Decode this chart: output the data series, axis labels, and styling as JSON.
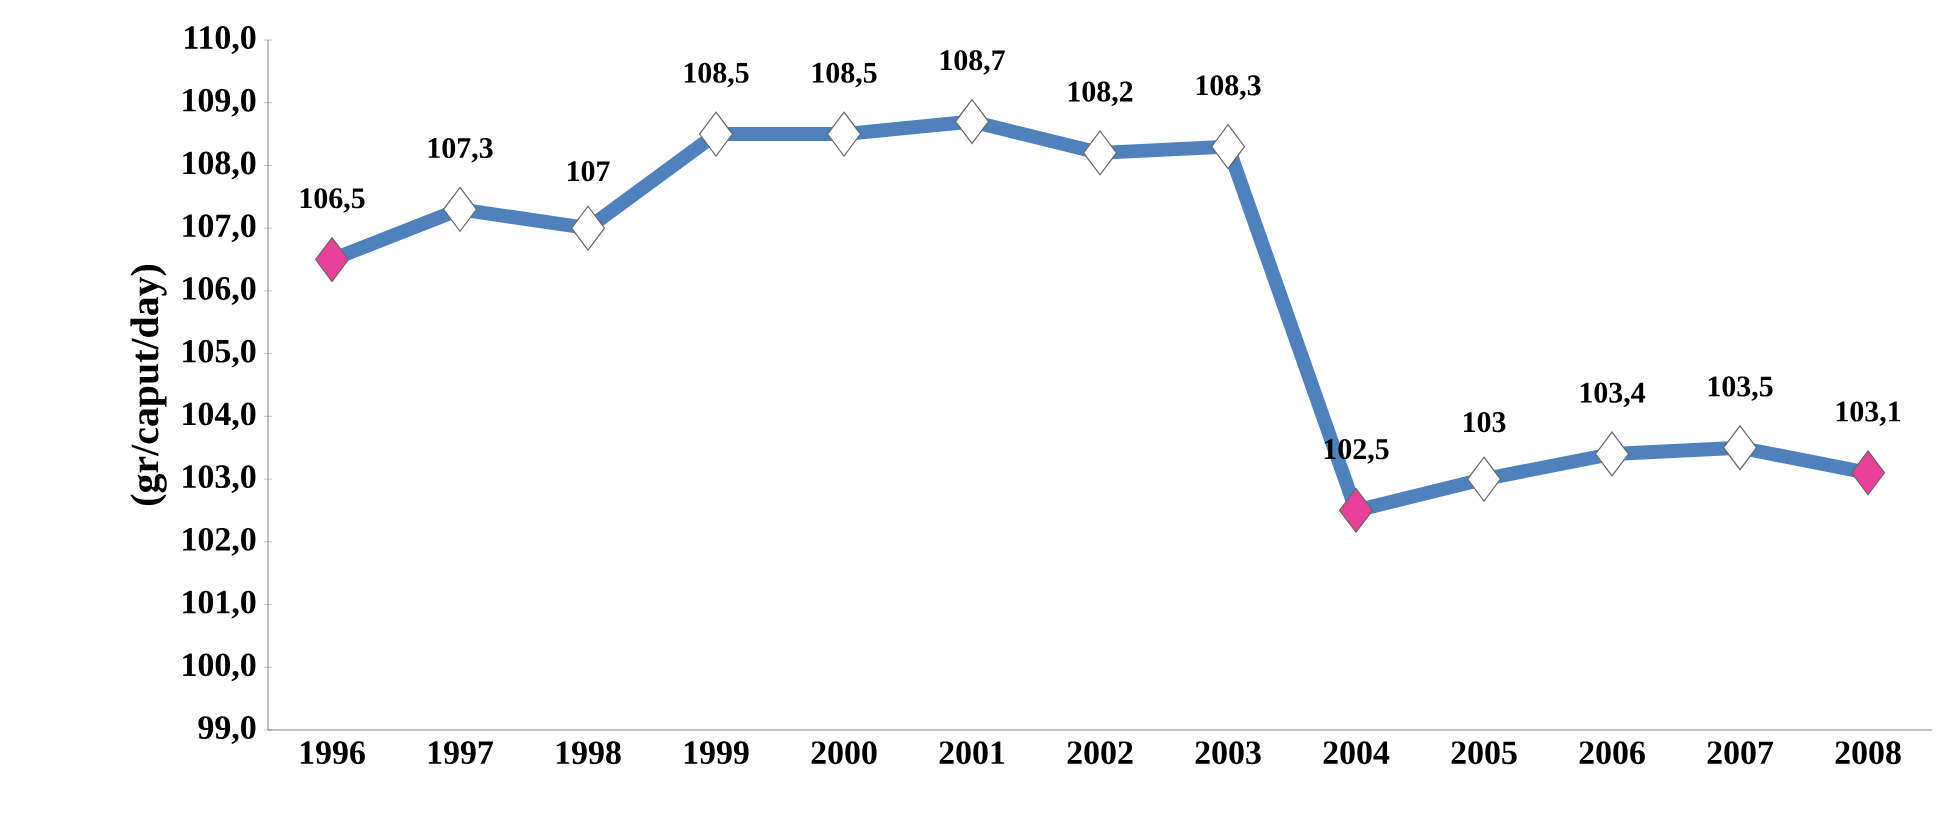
{
  "chart_data": {
    "type": "line",
    "ylabel": "(gr/caput/day)",
    "categories": [
      "1996",
      "1997",
      "1998",
      "1999",
      "2000",
      "2001",
      "2002",
      "2003",
      "2004",
      "2005",
      "2006",
      "2007",
      "2008"
    ],
    "series": [
      {
        "color": "#4f81bd",
        "colors": [
          "#e8419a",
          "#ffffff",
          "#ffffff",
          "#ffffff",
          "#ffffff",
          "#ffffff",
          "#ffffff",
          "#ffffff",
          "#e8419a",
          "#ffffff",
          "#ffffff",
          "#ffffff",
          "#e8419a"
        ],
        "values": [
          106.5,
          107.3,
          107,
          108.5,
          108.5,
          108.7,
          108.2,
          108.3,
          102.5,
          103,
          103.4,
          103.5,
          103.1
        ],
        "value_labels": [
          "106,5",
          "107,3",
          "107",
          "108,5",
          "108,5",
          "108,7",
          "108,2",
          "108,3",
          "102,5",
          "103",
          "103,4",
          "103,5",
          "103,1"
        ]
      }
    ],
    "ylim": [
      99,
      110
    ],
    "yticks": [
      {
        "value": 99,
        "label": "99,0"
      },
      {
        "value": 100,
        "label": "100,0"
      },
      {
        "value": 101,
        "label": "101,0"
      },
      {
        "value": 102,
        "label": "102,0"
      },
      {
        "value": 103,
        "label": "103,0"
      },
      {
        "value": 104,
        "label": "104,0"
      },
      {
        "value": 105,
        "label": "105,0"
      },
      {
        "value": 106,
        "label": "106,0"
      },
      {
        "value": 107,
        "label": "107,0"
      },
      {
        "value": 108,
        "label": "108,0"
      },
      {
        "value": 109,
        "label": "109,0"
      },
      {
        "value": 110,
        "label": "110,0"
      }
    ],
    "marker": "diamond",
    "grid": false
  }
}
